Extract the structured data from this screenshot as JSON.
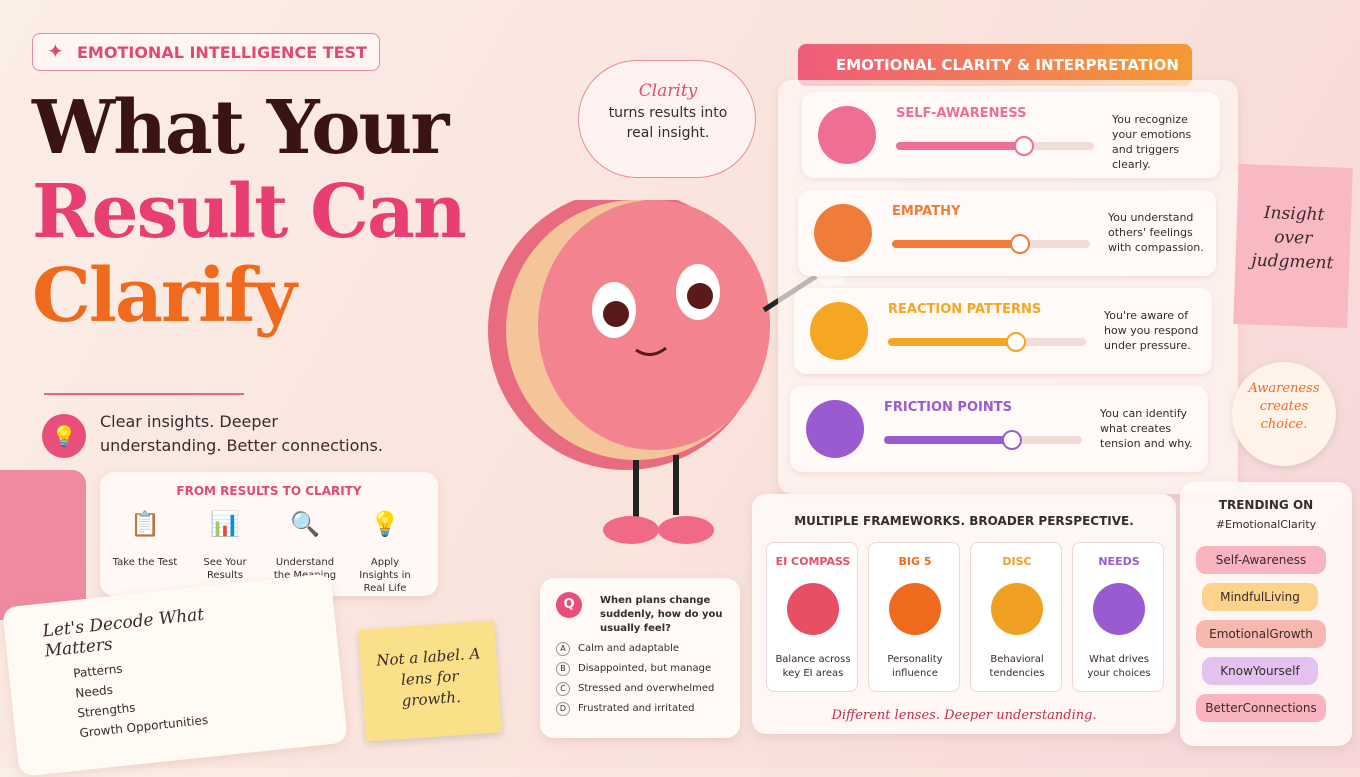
{
  "header": {
    "badge": "EMOTIONAL INTELLIGENCE TEST",
    "title": [
      "What Your",
      "Result Can",
      "Clarify"
    ],
    "tagline": "Clear insights. Deeper understanding. Better connections."
  },
  "process": {
    "title": "FROM RESULTS TO CLARITY",
    "steps": [
      "Take the Test",
      "See Your Results",
      "Understand the Meaning",
      "Apply Insights in Real Life"
    ]
  },
  "bubble": {
    "word": "Clarity",
    "text": "turns results into real insight."
  },
  "notebook": {
    "title": "Let's Decode What Matters",
    "items": [
      "Patterns",
      "Needs",
      "Strengths",
      "Growth Opportunities"
    ]
  },
  "sticky": "Not a label. A lens for growth.",
  "quiz": {
    "badge": "Q",
    "question": "When plans change suddenly, how do you usually feel?",
    "options": [
      {
        "letter": "A",
        "text": "Calm and adaptable"
      },
      {
        "letter": "B",
        "text": "Disappointed, but manage"
      },
      {
        "letter": "C",
        "text": "Stressed and overwhelmed"
      },
      {
        "letter": "D",
        "text": "Frustrated and irritated"
      }
    ]
  },
  "clarity": {
    "title": "EMOTIONAL CLARITY & INTERPRETATION",
    "traits": [
      {
        "name": "SELF-AWARENESS",
        "desc": "You recognize your emotions and triggers clearly."
      },
      {
        "name": "EMPATHY",
        "desc": "You understand others' feelings with compassion."
      },
      {
        "name": "REACTION PATTERNS",
        "desc": "You're aware of how you respond under pressure."
      },
      {
        "name": "FRICTION POINTS",
        "desc": "You can identify what creates tension and why."
      }
    ]
  },
  "notes": {
    "insight": "Insight over judgment",
    "awareness": "Awareness creates choice."
  },
  "frameworks": {
    "title": "MULTIPLE FRAMEWORKS. BROADER PERSPECTIVE.",
    "items": [
      {
        "name": "EI COMPASS",
        "desc": "Balance across key EI areas"
      },
      {
        "name": "BIG 5",
        "desc": "Personality influence"
      },
      {
        "name": "DISC",
        "desc": "Behavioral tendencies"
      },
      {
        "name": "NEEDS",
        "desc": "What drives your choices"
      }
    ],
    "footer": "Different lenses. Deeper understanding."
  },
  "trending": {
    "title": "TRENDING ON",
    "tag": "#EmotionalClarity",
    "tags": [
      "Self-Awareness",
      "MindfulLiving",
      "EmotionalGrowth",
      "KnowYourself",
      "BetterConnections"
    ]
  }
}
